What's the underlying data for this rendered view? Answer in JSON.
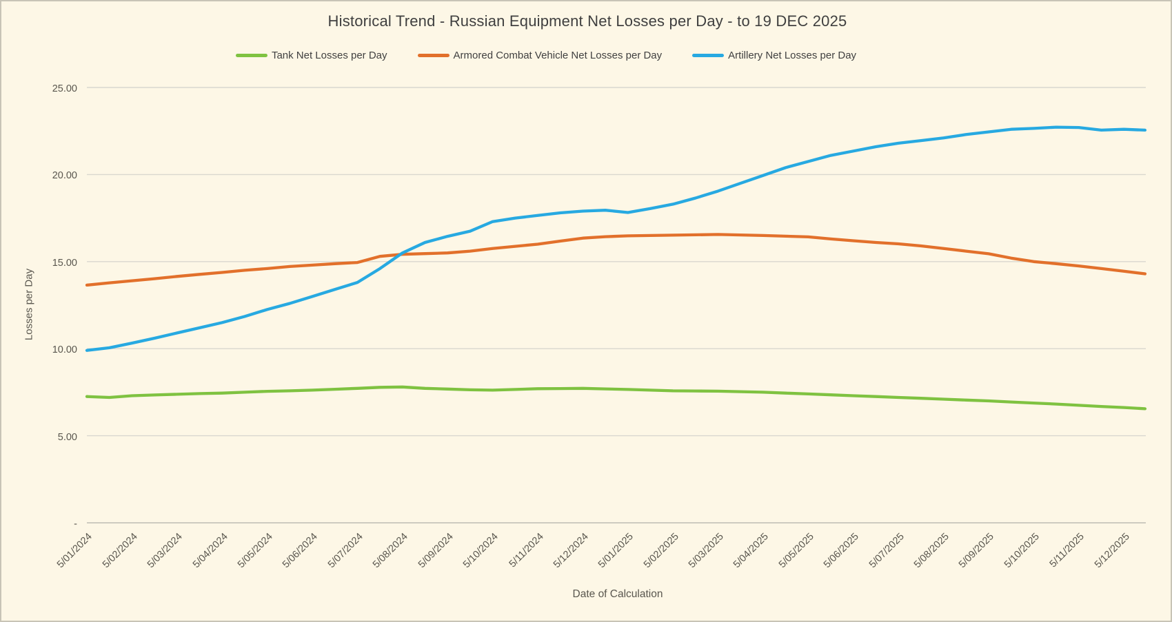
{
  "title": "Historical Trend - Russian Equipment Net Losses per Day - to 19 DEC 2025",
  "colors": {
    "background": "#fdf7e6",
    "frame_border": "#c8c4b6",
    "gridline": "#d9d7cf",
    "axis_line": "#bdbbb3",
    "title_text": "#3f3f3f",
    "label_text": "#59564e"
  },
  "legend": [
    {
      "label": "Tank Net Losses per Day",
      "color": "#7fc241"
    },
    {
      "label": "Armored Combat Vehicle Net Losses per Day",
      "color": "#e2702b"
    },
    {
      "label": "Artillery Net Losses per Day",
      "color": "#27a9e1"
    }
  ],
  "y_axis": {
    "title": "Losses per Day",
    "min": 0,
    "max": 25,
    "ticks": [
      {
        "label": "25.00",
        "value": 25
      },
      {
        "label": "20.00",
        "value": 20
      },
      {
        "label": "15.00",
        "value": 15
      },
      {
        "label": "10.00",
        "value": 10
      },
      {
        "label": "5.00",
        "value": 5
      },
      {
        "label": "-",
        "value": 0
      }
    ]
  },
  "x_axis": {
    "title": "Date of Calculation",
    "tick_labels": [
      "5/01/2024",
      "5/02/2024",
      "5/03/2024",
      "5/04/2024",
      "5/05/2024",
      "5/06/2024",
      "5/07/2024",
      "5/08/2024",
      "5/09/2024",
      "5/10/2024",
      "5/11/2024",
      "5/12/2024",
      "5/01/2025",
      "5/02/2025",
      "5/03/2025",
      "5/04/2025",
      "5/05/2025",
      "5/06/2025",
      "5/07/2025",
      "5/08/2025",
      "5/09/2025",
      "5/10/2025",
      "5/11/2025",
      "5/12/2025"
    ]
  },
  "chart_data": {
    "type": "line",
    "title": "Historical Trend - Russian Equipment Net Losses per Day - to 19 DEC 2025",
    "xlabel": "Date of Calculation",
    "ylabel": "Losses per Day",
    "ylim": [
      0,
      25
    ],
    "grid": "horizontal",
    "legend_position": "top",
    "x_unit": "months since 5/01/2024 (last point = 12/19/2025)",
    "x_months": [
      0,
      0.5,
      1,
      1.5,
      2,
      2.5,
      3,
      3.5,
      4,
      4.5,
      5,
      5.5,
      6,
      6.5,
      7,
      7.5,
      8,
      8.5,
      9,
      9.5,
      10,
      10.5,
      11,
      11.5,
      12,
      12.5,
      13,
      13.5,
      14,
      14.5,
      15,
      15.5,
      16,
      16.5,
      17,
      17.5,
      18,
      18.5,
      19,
      19.5,
      20,
      20.5,
      21,
      21.5,
      22,
      22.5,
      23,
      23.47
    ],
    "series": [
      {
        "name": "Tank Net Losses per Day",
        "color": "#7fc241",
        "values": [
          7.25,
          7.2,
          7.3,
          7.34,
          7.38,
          7.42,
          7.45,
          7.5,
          7.55,
          7.58,
          7.62,
          7.67,
          7.72,
          7.78,
          7.8,
          7.72,
          7.68,
          7.64,
          7.62,
          7.66,
          7.7,
          7.71,
          7.72,
          7.69,
          7.66,
          7.62,
          7.58,
          7.57,
          7.56,
          7.53,
          7.5,
          7.45,
          7.4,
          7.35,
          7.3,
          7.25,
          7.2,
          7.15,
          7.1,
          7.05,
          7.0,
          6.94,
          6.88,
          6.82,
          6.75,
          6.68,
          6.62,
          6.55
        ]
      },
      {
        "name": "Armored Combat Vehicle Net Losses per Day",
        "color": "#e2702b",
        "values": [
          13.65,
          13.78,
          13.9,
          14.02,
          14.15,
          14.27,
          14.38,
          14.5,
          14.6,
          14.72,
          14.8,
          14.88,
          14.95,
          15.3,
          15.42,
          15.46,
          15.5,
          15.6,
          15.75,
          15.88,
          16.0,
          16.18,
          16.35,
          16.43,
          16.48,
          16.5,
          16.52,
          16.54,
          16.56,
          16.53,
          16.5,
          16.46,
          16.42,
          16.3,
          16.2,
          16.1,
          16.02,
          15.9,
          15.75,
          15.6,
          15.45,
          15.2,
          15.0,
          14.88,
          14.75,
          14.6,
          14.45,
          14.3
        ]
      },
      {
        "name": "Artillery Net Losses per Day",
        "color": "#27a9e1",
        "values": [
          9.9,
          10.05,
          10.32,
          10.6,
          10.9,
          11.2,
          11.5,
          11.85,
          12.25,
          12.6,
          13.0,
          13.4,
          13.8,
          14.6,
          15.5,
          16.1,
          16.45,
          16.75,
          17.3,
          17.5,
          17.65,
          17.8,
          17.9,
          17.95,
          17.82,
          18.05,
          18.3,
          18.65,
          19.05,
          19.5,
          19.95,
          20.4,
          20.75,
          21.1,
          21.35,
          21.6,
          21.8,
          21.95,
          22.1,
          22.3,
          22.45,
          22.6,
          22.65,
          22.72,
          22.7,
          22.55,
          22.6,
          22.55
        ]
      }
    ]
  }
}
